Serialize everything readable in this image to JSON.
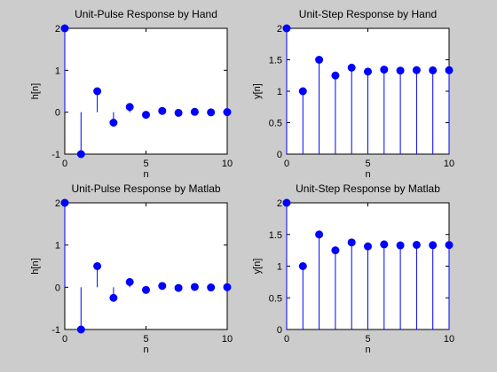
{
  "chart_data": [
    {
      "type": "stem",
      "title": "Unit-Pulse Response by Hand",
      "xlabel": "n",
      "ylabel": "h[n]",
      "xlim": [
        0,
        10
      ],
      "ylim": [
        -1,
        2
      ],
      "xticks": [
        0,
        5,
        10
      ],
      "yticks": [
        -1,
        0,
        1,
        2
      ],
      "x": [
        0,
        1,
        2,
        3,
        4,
        5,
        6,
        7,
        8,
        9,
        10
      ],
      "y": [
        2,
        -1,
        0.5,
        -0.25,
        0.125,
        -0.0625,
        0.03125,
        -0.015625,
        0.0078,
        -0.0039,
        0.002
      ],
      "color": "#0000ff"
    },
    {
      "type": "stem",
      "title": "Unit-Step Response by Hand",
      "xlabel": "n",
      "ylabel": "y[n]",
      "xlim": [
        0,
        10
      ],
      "ylim": [
        0,
        2
      ],
      "xticks": [
        0,
        5,
        10
      ],
      "yticks": [
        0,
        0.5,
        1,
        1.5,
        2
      ],
      "x": [
        0,
        1,
        2,
        3,
        4,
        5,
        6,
        7,
        8,
        9,
        10
      ],
      "y": [
        2,
        1,
        1.5,
        1.25,
        1.375,
        1.3125,
        1.34375,
        1.328125,
        1.336,
        1.332,
        1.334
      ],
      "color": "#0000ff"
    },
    {
      "type": "stem",
      "title": "Unit-Pulse Response by Matlab",
      "xlabel": "n",
      "ylabel": "h[n]",
      "xlim": [
        0,
        10
      ],
      "ylim": [
        -1,
        2
      ],
      "xticks": [
        0,
        5,
        10
      ],
      "yticks": [
        -1,
        0,
        1,
        2
      ],
      "x": [
        0,
        1,
        2,
        3,
        4,
        5,
        6,
        7,
        8,
        9,
        10
      ],
      "y": [
        2,
        -1,
        0.5,
        -0.25,
        0.125,
        -0.0625,
        0.03125,
        -0.015625,
        0.0078,
        -0.0039,
        0.002
      ],
      "color": "#0000ff"
    },
    {
      "type": "stem",
      "title": "Unit-Step Response by Matlab",
      "xlabel": "n",
      "ylabel": "y[n]",
      "xlim": [
        0,
        10
      ],
      "ylim": [
        0,
        2
      ],
      "xticks": [
        0,
        5,
        10
      ],
      "yticks": [
        0,
        0.5,
        1,
        1.5,
        2
      ],
      "x": [
        0,
        1,
        2,
        3,
        4,
        5,
        6,
        7,
        8,
        9,
        10
      ],
      "y": [
        2,
        1,
        1.5,
        1.25,
        1.375,
        1.3125,
        1.34375,
        1.328125,
        1.336,
        1.332,
        1.334
      ],
      "color": "#0000ff"
    }
  ]
}
